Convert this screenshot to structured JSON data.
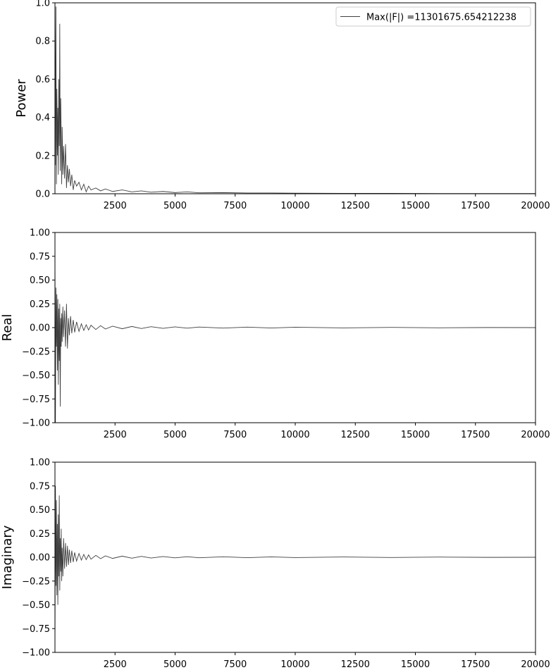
{
  "chart_data": [
    {
      "type": "line",
      "ylabel": "Power",
      "xlim": [
        0,
        20000
      ],
      "ylim": [
        0,
        1.0
      ],
      "xticks": [
        2500,
        5000,
        7500,
        10000,
        12500,
        15000,
        17500,
        20000
      ],
      "yticks": [
        "0.0",
        "0.2",
        "0.4",
        "0.6",
        "0.8",
        "1.0"
      ],
      "legend": "Max(|F|) =11301675.654212238",
      "legend_position": "top-right",
      "color": "#404040",
      "series": [
        {
          "x": [
            0,
            20,
            40,
            60,
            80,
            100,
            120,
            140,
            160,
            180,
            200,
            220,
            240,
            260,
            280,
            300,
            330,
            360,
            400,
            440,
            480,
            520,
            560,
            600,
            650,
            700,
            760,
            820,
            900,
            1000,
            1100,
            1200,
            1300,
            1400,
            1500,
            1700,
            1900,
            2100,
            2400,
            2800,
            3200,
            3600,
            4000,
            4500,
            5000,
            5500,
            6000,
            7000,
            8000,
            9000,
            10000,
            12000,
            14000,
            16000,
            18000,
            20000
          ],
          "y": [
            1.0,
            0.15,
            0.98,
            0.05,
            0.55,
            0.2,
            0.45,
            0.1,
            0.6,
            0.25,
            0.89,
            0.12,
            0.5,
            0.3,
            0.05,
            0.35,
            0.1,
            0.25,
            0.08,
            0.26,
            0.03,
            0.15,
            0.06,
            0.13,
            0.04,
            0.1,
            0.02,
            0.07,
            0.04,
            0.06,
            0.02,
            0.05,
            0.01,
            0.04,
            0.02,
            0.03,
            0.015,
            0.025,
            0.012,
            0.02,
            0.01,
            0.015,
            0.008,
            0.012,
            0.006,
            0.01,
            0.005,
            0.006,
            0.004,
            0.004,
            0.003,
            0.002,
            0.002,
            0.001,
            0.001,
            0.001
          ]
        }
      ]
    },
    {
      "type": "line",
      "ylabel": "Real",
      "xlim": [
        0,
        20000
      ],
      "ylim": [
        -1.0,
        1.0
      ],
      "xticks": [
        2500,
        5000,
        7500,
        10000,
        12500,
        15000,
        17500,
        20000
      ],
      "yticks": [
        "−1.00",
        "−0.75",
        "−0.50",
        "−0.25",
        "0.00",
        "0.25",
        "0.50",
        "0.75",
        "1.00"
      ],
      "color": "#404040",
      "series": [
        {
          "x": [
            0,
            20,
            40,
            60,
            80,
            100,
            120,
            140,
            160,
            180,
            200,
            220,
            240,
            260,
            280,
            300,
            330,
            360,
            400,
            440,
            480,
            520,
            560,
            600,
            650,
            700,
            760,
            820,
            900,
            1000,
            1100,
            1200,
            1300,
            1400,
            1500,
            1700,
            1900,
            2100,
            2400,
            2800,
            3200,
            3600,
            4000,
            4500,
            5000,
            5500,
            6000,
            7000,
            8000,
            9000,
            10000,
            12000,
            14000,
            16000,
            18000,
            20000
          ],
          "y": [
            0.75,
            -1.0,
            0.42,
            -0.2,
            0.35,
            -0.45,
            0.3,
            -0.6,
            0.2,
            -0.35,
            0.25,
            -0.83,
            0.1,
            -0.2,
            0.15,
            -0.15,
            0.22,
            -0.1,
            0.18,
            -0.2,
            0.25,
            -0.22,
            0.1,
            -0.08,
            0.12,
            -0.06,
            0.08,
            -0.05,
            0.06,
            -0.04,
            0.04,
            -0.03,
            0.03,
            -0.025,
            0.025,
            -0.02,
            0.02,
            -0.015,
            0.015,
            -0.012,
            0.012,
            -0.01,
            0.01,
            -0.008,
            0.008,
            -0.006,
            0.006,
            -0.005,
            0.005,
            -0.004,
            0.004,
            -0.003,
            0.002,
            -0.002,
            0.001,
            0.0
          ]
        }
      ]
    },
    {
      "type": "line",
      "ylabel": "Imaginary",
      "xlim": [
        0,
        20000
      ],
      "ylim": [
        -1.0,
        1.0
      ],
      "xticks": [
        2500,
        5000,
        7500,
        10000,
        12500,
        15000,
        17500,
        20000
      ],
      "yticks": [
        "−1.00",
        "−0.75",
        "−0.50",
        "−0.25",
        "0.00",
        "0.25",
        "0.50",
        "0.75",
        "1.00"
      ],
      "color": "#404040",
      "series": [
        {
          "x": [
            0,
            20,
            40,
            60,
            80,
            100,
            120,
            140,
            160,
            180,
            200,
            220,
            240,
            260,
            280,
            300,
            330,
            360,
            400,
            440,
            480,
            520,
            560,
            600,
            650,
            700,
            760,
            820,
            900,
            1000,
            1100,
            1200,
            1300,
            1400,
            1500,
            1700,
            1900,
            2100,
            2400,
            2800,
            3200,
            3600,
            4000,
            4500,
            5000,
            5500,
            6000,
            7000,
            8000,
            9000,
            10000,
            12000,
            14000,
            16000,
            18000,
            20000
          ],
          "y": [
            -0.95,
            0.75,
            -0.3,
            0.6,
            -0.4,
            0.35,
            -0.5,
            0.45,
            -0.2,
            0.65,
            -0.35,
            0.2,
            -0.15,
            0.3,
            -0.25,
            0.1,
            -0.2,
            0.2,
            -0.12,
            0.15,
            -0.1,
            0.12,
            -0.08,
            0.08,
            -0.06,
            0.07,
            -0.05,
            0.05,
            -0.04,
            0.04,
            -0.03,
            0.03,
            -0.025,
            0.025,
            -0.02,
            0.02,
            -0.015,
            0.015,
            -0.012,
            0.012,
            -0.01,
            0.01,
            -0.008,
            0.008,
            -0.006,
            0.006,
            -0.005,
            0.005,
            -0.004,
            0.004,
            -0.003,
            0.003,
            -0.002,
            0.002,
            -0.001,
            0.0
          ]
        }
      ]
    }
  ]
}
